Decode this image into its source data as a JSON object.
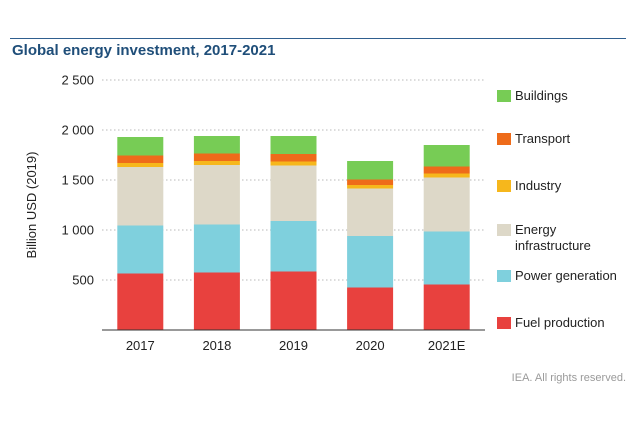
{
  "title": "Global energy investment, 2017-2021",
  "credit": "IEA. All rights reserved.",
  "chart_data": {
    "type": "bar",
    "stacked": true,
    "categories": [
      "2017",
      "2018",
      "2019",
      "2020",
      "2021E"
    ],
    "ylabel": "Billion USD (2019)",
    "ylim": [
      0,
      2500
    ],
    "yticks": [
      500,
      1000,
      1500,
      2000,
      2500
    ],
    "ytick_labels": [
      "500",
      "1 000",
      "1 500",
      "2 000",
      "2 500"
    ],
    "grid": "horizontal dotted",
    "legend_position": "right",
    "series": [
      {
        "name": "Fuel production",
        "color": "#e8413e",
        "values": [
          565,
          575,
          585,
          425,
          455
        ]
      },
      {
        "name": "Power generation",
        "color": "#7fd0dd",
        "values": [
          480,
          480,
          505,
          515,
          530
        ]
      },
      {
        "name": "Energy infrastructure",
        "color": "#ddd8c8",
        "values": [
          585,
          595,
          555,
          475,
          540
        ]
      },
      {
        "name": "Industry",
        "color": "#f6b71c",
        "values": [
          40,
          40,
          40,
          35,
          40
        ]
      },
      {
        "name": "Transport",
        "color": "#ee6b1a",
        "values": [
          75,
          75,
          75,
          55,
          70
        ]
      },
      {
        "name": "Buildings",
        "color": "#77cc55",
        "values": [
          185,
          175,
          180,
          185,
          215
        ]
      }
    ],
    "legend_order": [
      "Buildings",
      "Transport",
      "Industry",
      "Energy infrastructure",
      "Power generation",
      "Fuel production"
    ]
  }
}
